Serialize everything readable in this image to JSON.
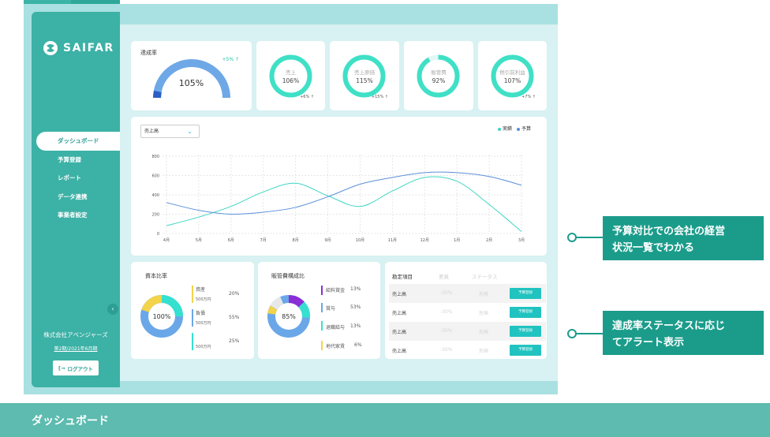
{
  "app": {
    "name": "SAIFAR"
  },
  "sidebar": {
    "items": [
      {
        "label": "ダッシュボード"
      },
      {
        "label": "予算登録"
      },
      {
        "label": "レポート"
      },
      {
        "label": "データ連携"
      },
      {
        "label": "事業者設定"
      }
    ],
    "company": "株式会社アベンジャーズ",
    "period": "第2期/2021年6月期",
    "logout": "ログアウト"
  },
  "kpi": {
    "achievement": {
      "title": "達成率",
      "value": "105%",
      "delta": "+5% ↑",
      "ratio": 1.05
    },
    "rings": [
      {
        "label": "売上",
        "value": "106%",
        "delta": "+6% ↑",
        "ratio": 1.0
      },
      {
        "label": "売上原価",
        "value": "115%",
        "delta": "+15% ↑",
        "ratio": 1.0
      },
      {
        "label": "販管費",
        "value": "92%",
        "delta": "",
        "ratio": 0.92
      },
      {
        "label": "税引前利益",
        "value": "107%",
        "delta": "+7% ↑",
        "ratio": 1.0
      }
    ]
  },
  "line_chart": {
    "select_value": "売上高",
    "legend": [
      {
        "name": "実績",
        "color": "#3fd6c4"
      },
      {
        "name": "予算",
        "color": "#5b8fd8"
      }
    ]
  },
  "capital": {
    "title": "資本比率",
    "center": "100%",
    "items": [
      {
        "label": "資産",
        "sub": "500万円",
        "pct": "20%",
        "color": "#f3d34a"
      },
      {
        "label": "負債",
        "sub": "500万円",
        "pct": "55%",
        "color": "#6aa7e8"
      },
      {
        "label": "",
        "sub": "500万円",
        "pct": "25%",
        "color": "#35e0cf"
      }
    ]
  },
  "sga": {
    "title": "販管費構成比",
    "center": "85%",
    "items": [
      {
        "label": "給料賞金",
        "pct": "13%",
        "color": "#8a2fd6"
      },
      {
        "label": "賞与",
        "pct": "53%",
        "color": "#6aa7e8"
      },
      {
        "label": "退職給与",
        "pct": "13%",
        "color": "#35e0cf"
      },
      {
        "label": "地代家賃",
        "pct": "6%",
        "color": "#f3d34a"
      }
    ]
  },
  "status_table": {
    "headers": [
      "勘定項目",
      "差異",
      "ステータス"
    ],
    "rows": [
      {
        "item": "売上高",
        "diff": "-30%",
        "status": "危険",
        "button": "予算登録"
      },
      {
        "item": "売上高",
        "diff": "-30%",
        "status": "危険",
        "button": "予算登録"
      },
      {
        "item": "売上高",
        "diff": "-30%",
        "status": "危険",
        "button": "予算登録"
      },
      {
        "item": "売上高",
        "diff": "-30%",
        "status": "危険",
        "button": "予算登録"
      }
    ]
  },
  "callouts": [
    {
      "line1": "予算対比での会社の経営",
      "line2": "状況一覧でわかる"
    },
    {
      "line1": "達成率ステータスに応じ",
      "line2": "てアラート表示"
    }
  ],
  "banner": {
    "title": "ダッシュボード"
  },
  "chart_data": {
    "type": "line",
    "x": [
      "4月",
      "5月",
      "6月",
      "7月",
      "8月",
      "9月",
      "10月",
      "11月",
      "12月",
      "1月",
      "2月",
      "3月"
    ],
    "series": [
      {
        "name": "実績",
        "values": [
          80,
          170,
          280,
          430,
          520,
          390,
          280,
          440,
          580,
          540,
          300,
          20
        ]
      },
      {
        "name": "予算",
        "values": [
          320,
          240,
          200,
          220,
          270,
          380,
          510,
          580,
          630,
          630,
          590,
          500
        ]
      }
    ],
    "ylim": [
      0,
      800
    ],
    "yticks": [
      0,
      200,
      400,
      600,
      800
    ],
    "grid": true,
    "legend": "top-right"
  }
}
